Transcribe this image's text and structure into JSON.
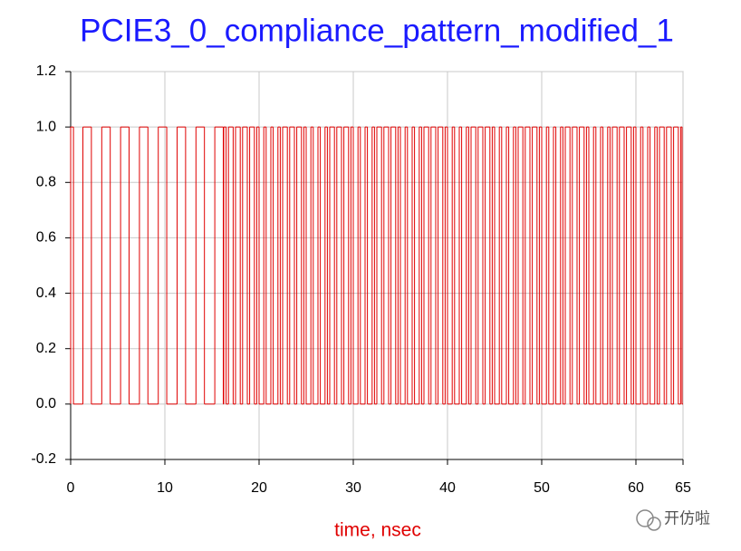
{
  "chart_data": {
    "type": "step",
    "title": "PCIE3_0_compliance_pattern_modified_1",
    "x_label": "time, nsec",
    "watermark": "开仿啦",
    "color": "#e00000",
    "grid": true,
    "xlim": [
      0,
      65
    ],
    "xticks": [
      0,
      10,
      20,
      30,
      40,
      50,
      60,
      65
    ],
    "ylim": [
      -0.2,
      1.2
    ],
    "yticks": [
      -0.2,
      {
        "value": 0,
        "label": "0.0"
      },
      0.2,
      0.4,
      0.6,
      0.8,
      {
        "value": 1,
        "label": "1.0"
      },
      1.2
    ],
    "x": [
      0,
      0.3,
      1.3,
      2.2,
      3.3,
      4.2,
      5.3,
      6.2,
      7.3,
      8.2,
      9.3,
      10.2,
      11.3,
      12.2,
      13.3,
      14.2,
      15.3,
      16.2,
      16.25,
      16.5,
      16.75,
      17.25,
      17.5,
      18,
      18.25,
      18.75,
      19,
      19.5,
      19.75,
      20,
      20.5,
      20.75,
      21.25,
      21.5,
      22,
      22.25,
      22.5,
      23,
      23.25,
      23.75,
      24,
      24.5,
      24.75,
      25,
      25.5,
      25.75,
      26.25,
      26.5,
      27,
      27.25,
      27.5,
      28,
      28.25,
      28.75,
      29,
      29.5,
      29.75,
      30,
      30.5,
      30.75,
      31.25,
      31.5,
      32,
      32.25,
      32.5,
      33,
      33.25,
      33.75,
      34,
      34.5,
      34.75,
      35,
      35.5,
      35.75,
      36.25,
      36.5,
      37,
      37.25,
      37.5,
      38,
      38.25,
      38.75,
      39,
      39.5,
      39.75,
      40,
      40.5,
      40.75,
      41.25,
      41.5,
      42,
      42.25,
      42.5,
      43,
      43.25,
      43.75,
      44,
      44.5,
      44.75,
      45,
      45.5,
      45.75,
      46.25,
      46.5,
      47,
      47.25,
      47.5,
      48,
      48.25,
      48.75,
      49,
      49.5,
      49.75,
      50,
      50.5,
      50.75,
      51.25,
      51.5,
      52,
      52.25,
      52.5,
      53,
      53.25,
      53.75,
      54,
      54.5,
      54.75,
      55,
      55.5,
      55.75,
      56.25,
      56.5,
      57,
      57.25,
      57.5,
      58,
      58.25,
      58.75,
      59,
      59.5,
      59.75,
      60,
      60.5,
      60.75,
      61.25,
      61.5,
      62,
      62.25,
      62.5,
      63,
      63.25,
      63.75,
      64,
      64.5,
      64.75,
      64.9
    ],
    "values": [
      1,
      0,
      1,
      0,
      1,
      0,
      1,
      0,
      1,
      0,
      1,
      0,
      1,
      0,
      1,
      0,
      1,
      0,
      1,
      0,
      1,
      0,
      1,
      0,
      1,
      0,
      1,
      0,
      1,
      0,
      1,
      0,
      1,
      0,
      1,
      0,
      1,
      0,
      1,
      0,
      1,
      0,
      1,
      0,
      1,
      0,
      1,
      0,
      1,
      0,
      1,
      0,
      1,
      0,
      1,
      0,
      1,
      0,
      1,
      0,
      1,
      0,
      1,
      0,
      1,
      0,
      1,
      0,
      1,
      0,
      1,
      0,
      1,
      0,
      1,
      0,
      1,
      0,
      1,
      0,
      1,
      0,
      1,
      0,
      1,
      0,
      1,
      0,
      1,
      0,
      1,
      0,
      1,
      0,
      1,
      0,
      1,
      0,
      1,
      0,
      1,
      0,
      1,
      0,
      1,
      0,
      1,
      0,
      1,
      0,
      1,
      0,
      1,
      0,
      1,
      0,
      1,
      0,
      1,
      0,
      1,
      0,
      1,
      0,
      1,
      0,
      1,
      0,
      1,
      0,
      1,
      0,
      1,
      0,
      1,
      0,
      1,
      0,
      1,
      0,
      1,
      0,
      1,
      0,
      1,
      0,
      1,
      0,
      1,
      0,
      1,
      0,
      1,
      0,
      1,
      0
    ]
  }
}
